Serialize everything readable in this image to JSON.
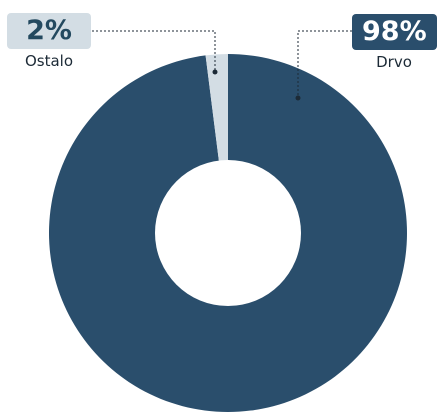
{
  "chart_data": {
    "type": "pie",
    "donut": true,
    "categories": [
      "Drvo",
      "Ostalo"
    ],
    "values": [
      98,
      2
    ],
    "value_labels": [
      "98%",
      "2%"
    ],
    "colors": {
      "Drvo": "#2a4e6c",
      "Ostalo": "#d3dde4"
    }
  },
  "callouts": {
    "ostalo": {
      "value": "2%",
      "label": "Ostalo"
    },
    "drvo": {
      "value": "98%",
      "label": "Drvo"
    }
  }
}
